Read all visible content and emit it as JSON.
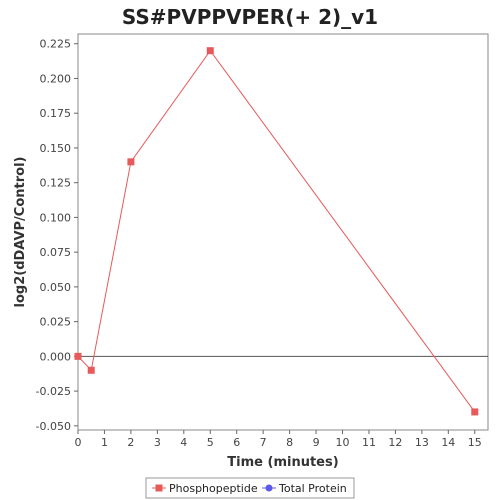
{
  "chart_data": {
    "type": "line",
    "title": "SS#PVPPVPER(+ 2)_v1",
    "xlabel": "Time (minutes)",
    "ylabel": "log2(dDAVP/Control)",
    "xlim": [
      0,
      15.5
    ],
    "ylim": [
      -0.053,
      0.232
    ],
    "xticks": [
      0,
      1,
      2,
      3,
      4,
      5,
      6,
      7,
      8,
      9,
      10,
      11,
      12,
      13,
      14,
      15
    ],
    "yticks": [
      -0.05,
      -0.025,
      0.0,
      0.025,
      0.05,
      0.075,
      0.1,
      0.125,
      0.15,
      0.175,
      0.2,
      0.225
    ],
    "ytick_labels": [
      "-0.050",
      "-0.025",
      "0.000",
      "0.025",
      "0.050",
      "0.075",
      "0.100",
      "0.125",
      "0.150",
      "0.175",
      "0.200",
      "0.225"
    ],
    "xtick_labels": [
      "0",
      "1",
      "2",
      "3",
      "4",
      "5",
      "6",
      "7",
      "8",
      "9",
      "10",
      "11",
      "12",
      "13",
      "14",
      "15"
    ],
    "zero_line": true,
    "grid": false,
    "legend_position": "bottom",
    "series": [
      {
        "name": "Phosphopeptide",
        "color": "#e8595a",
        "marker": "square",
        "x": [
          0,
          0.5,
          2,
          5,
          15
        ],
        "y": [
          0.0,
          -0.01,
          0.14,
          0.22,
          -0.04
        ]
      },
      {
        "name": "Total Protein",
        "color": "#5a5ae8",
        "marker": "circle",
        "x": [],
        "y": []
      }
    ]
  }
}
